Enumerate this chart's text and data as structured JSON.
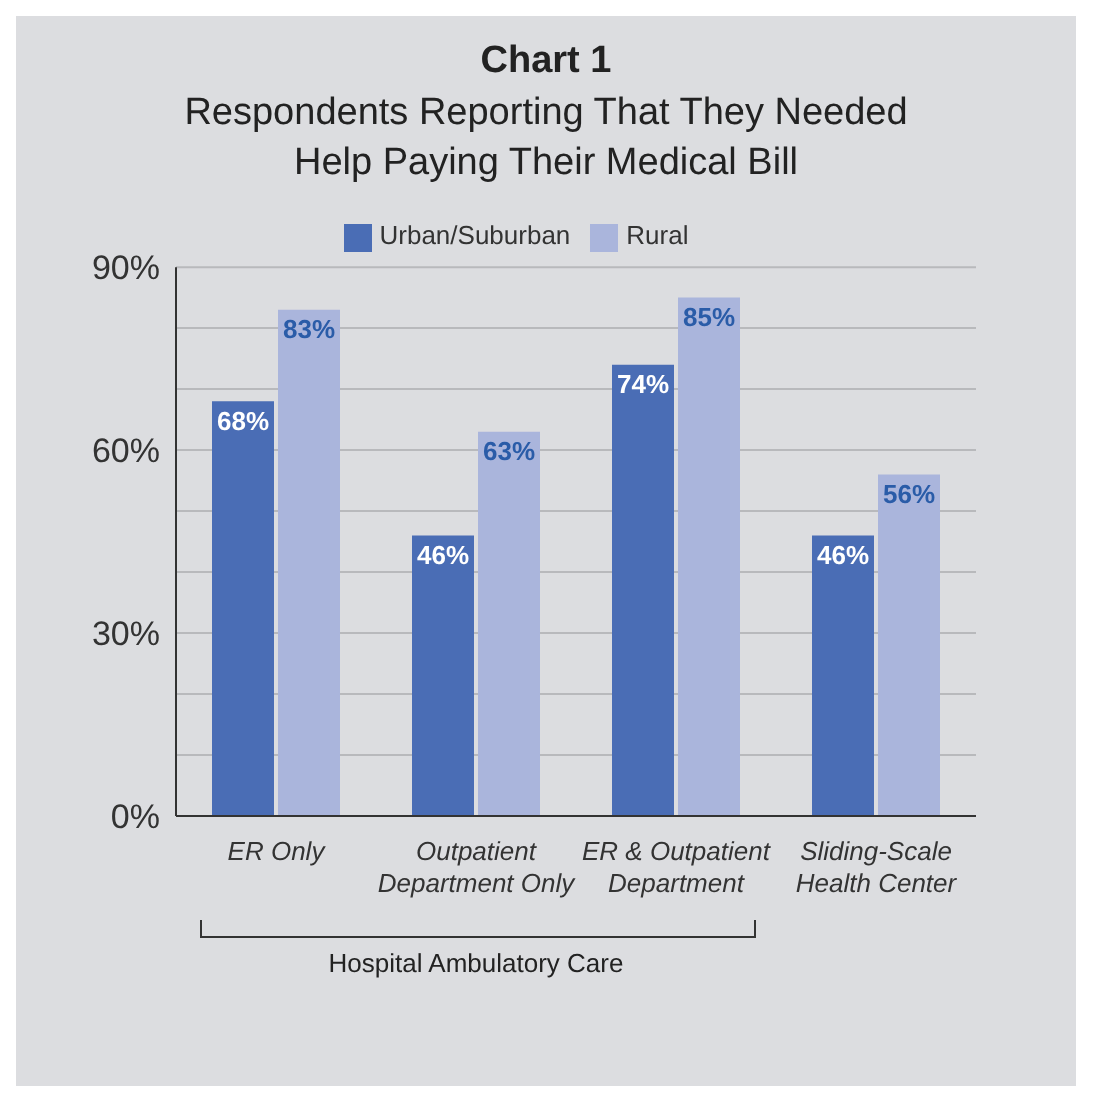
{
  "chart_data": {
    "type": "bar",
    "title": "Chart 1",
    "subtitle": "Respondents Reporting That They Needed Help Paying Their Medical Bill",
    "categories": [
      "ER Only",
      "Outpatient Department Only",
      "ER & Outpatient Department",
      "Sliding-Scale Health Center"
    ],
    "series": [
      {
        "name": "Urban/Suburban",
        "color": "#4a6db5",
        "values": [
          68,
          46,
          74,
          46
        ],
        "value_labels": [
          "68%",
          "46%",
          "74%",
          "46%"
        ]
      },
      {
        "name": "Rural",
        "color": "#aab5dc",
        "values": [
          83,
          63,
          85,
          56
        ],
        "value_labels": [
          "83%",
          "63%",
          "85%",
          "56%"
        ]
      }
    ],
    "ylim": [
      0,
      90
    ],
    "yticks": [
      {
        "value": 0,
        "label": "0%"
      },
      {
        "value": 10,
        "label": null
      },
      {
        "value": 20,
        "label": null
      },
      {
        "value": 30,
        "label": "30%"
      },
      {
        "value": 40,
        "label": null
      },
      {
        "value": 50,
        "label": null
      },
      {
        "value": 60,
        "label": "60%"
      },
      {
        "value": 70,
        "label": null
      },
      {
        "value": 80,
        "label": null
      },
      {
        "value": 90,
        "label": "90%"
      }
    ],
    "grid": "y",
    "legend": "top",
    "annotations": [
      "Hospital Ambulatory Care"
    ]
  }
}
